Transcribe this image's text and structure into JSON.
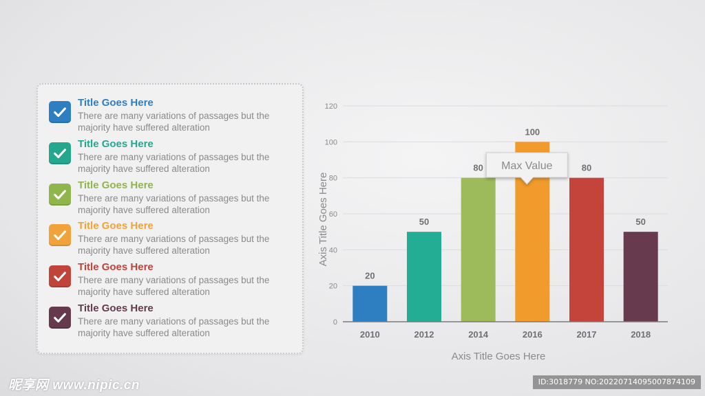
{
  "list": {
    "items": [
      {
        "title": "Title Goes Here",
        "text": "There are many variations of passages but the majority have  suffered alteration",
        "color": "#2e7fc2"
      },
      {
        "title": "Title Goes Here",
        "text": "There are many variations of passages but the majority have  suffered alteration",
        "color": "#23a88f"
      },
      {
        "title": "Title Goes Here",
        "text": "There are many variations of passages but the majority have  suffered alteration",
        "color": "#8fb54b"
      },
      {
        "title": "Title Goes Here",
        "text": "There are many variations of passages but the majority have  suffered alteration",
        "color": "#f0a33a"
      },
      {
        "title": "Title Goes Here",
        "text": "There are many variations of passages but the majority have  suffered alteration",
        "color": "#c0443a"
      },
      {
        "title": "Title Goes Here",
        "text": "There are many variations of passages but the majority have  suffered alteration",
        "color": "#643a4c"
      }
    ]
  },
  "chart_data": {
    "type": "bar",
    "categories": [
      "2010",
      "2012",
      "2014",
      "2016",
      "2017",
      "2018"
    ],
    "values": [
      20,
      50,
      80,
      100,
      80,
      50
    ],
    "colors": [
      "#2e7fc2",
      "#23ad94",
      "#9dbb5a",
      "#f09b2b",
      "#c4443b",
      "#673a4d"
    ],
    "xlabel": "Axis Title Goes Here",
    "ylabel": "Axis Title Goes Here",
    "ylim": [
      0,
      120
    ],
    "yticks": [
      0,
      20,
      40,
      60,
      80,
      100,
      120
    ],
    "grid": true,
    "annotation": {
      "text": "Max Value",
      "category": "2016"
    }
  },
  "watermark": {
    "left": "昵享网 www.nipic.cn",
    "right": "ID:3018779 NO:20220714095007874109"
  }
}
